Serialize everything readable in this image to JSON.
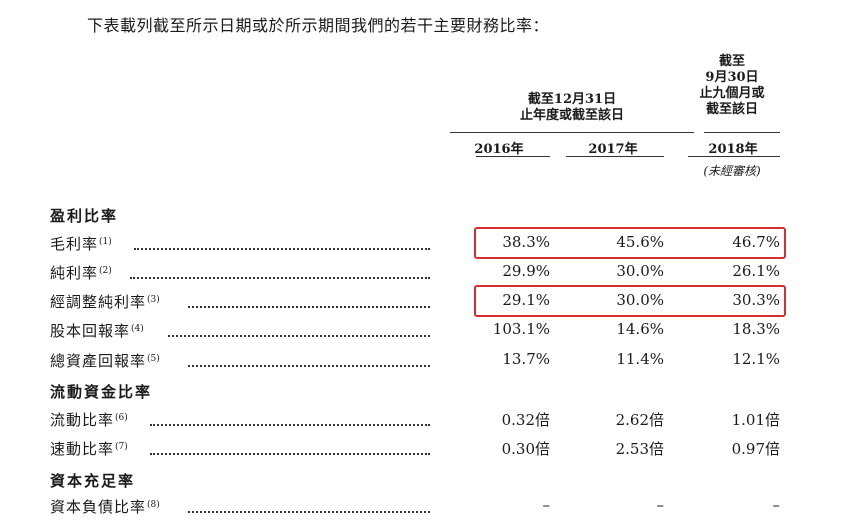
{
  "intro": "下表載列截至所示日期或於所示期間我們的若干主要財務比率：",
  "header": {
    "group_line1": "截至12月31日",
    "group_line2": "止年度或截至該日",
    "ninemo_line1": "截至",
    "ninemo_line2": "9月30日",
    "ninemo_line3": "止九個月或",
    "ninemo_line4": "截至該日",
    "years": [
      "2016年",
      "2017年",
      "2018年"
    ],
    "unaudited": "(未經審核)"
  },
  "sections": {
    "profitability": "盈利比率",
    "liquidity": "流動資金比率",
    "capital": "資本充足率"
  },
  "rows": [
    {
      "label": "毛利率",
      "note": "(1)",
      "values": [
        "38.3%",
        "45.6%",
        "46.7%"
      ],
      "highlighted": true
    },
    {
      "label": "純利率",
      "note": "(2)",
      "values": [
        "29.9%",
        "30.0%",
        "26.1%"
      ],
      "highlighted": false
    },
    {
      "label": "經調整純利率",
      "note": "(3)",
      "values": [
        "29.1%",
        "30.0%",
        "30.3%"
      ],
      "highlighted": true
    },
    {
      "label": "股本回報率",
      "note": "(4)",
      "values": [
        "103.1%",
        "14.6%",
        "18.3%"
      ],
      "highlighted": false
    },
    {
      "label": "總資產回報率",
      "note": "(5)",
      "values": [
        "13.7%",
        "11.4%",
        "12.1%"
      ],
      "highlighted": false
    },
    {
      "label": "流動比率",
      "note": "(6)",
      "values": [
        "0.32倍",
        "2.62倍",
        "1.01倍"
      ],
      "highlighted": false
    },
    {
      "label": "速動比率",
      "note": "(7)",
      "values": [
        "0.30倍",
        "2.53倍",
        "0.97倍"
      ],
      "highlighted": false
    },
    {
      "label": "資本負債比率",
      "note": "(8)",
      "values": [
        "–",
        "–",
        "–"
      ],
      "highlighted": false
    }
  ],
  "highlight_color": "#d32f2f"
}
